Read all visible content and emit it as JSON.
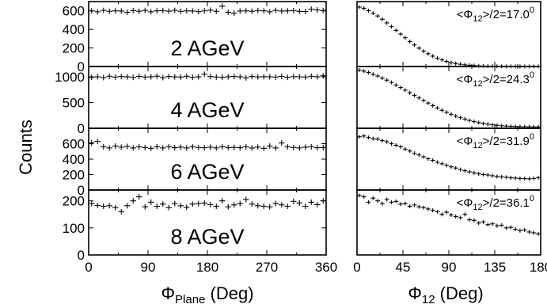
{
  "figure": {
    "ylabel": "Counts",
    "left_xlabel_main": "Φ",
    "left_xlabel_sub": "Plane",
    "left_xlabel_unit": " (Deg)",
    "right_xlabel_main": "Φ",
    "right_xlabel_sub": "12",
    "right_xlabel_unit": " (Deg)",
    "left_xticks": [
      "0",
      "90",
      "180",
      "270",
      "360"
    ],
    "right_xticks": [
      "0",
      "45",
      "90",
      "135",
      "180"
    ]
  },
  "chart_data": [
    {
      "type": "scatter",
      "panel": "left-1",
      "label": "2 AGeV",
      "xlabel": "Φ_Plane (Deg)",
      "ylabel": "Counts",
      "xlim": [
        0,
        360
      ],
      "ylim": [
        0,
        700
      ],
      "yticks": [
        "0",
        "200",
        "400",
        "600"
      ],
      "x": [
        4.5,
        13.5,
        22.5,
        31.5,
        40.5,
        49.5,
        58.5,
        67.5,
        76.5,
        85.5,
        94.5,
        103.5,
        112.5,
        121.5,
        130.5,
        139.5,
        148.5,
        157.5,
        166.5,
        175.5,
        184.5,
        193.5,
        202.5,
        211.5,
        220.5,
        229.5,
        238.5,
        247.5,
        256.5,
        265.5,
        274.5,
        283.5,
        292.5,
        301.5,
        310.5,
        319.5,
        328.5,
        337.5,
        346.5,
        355.5
      ],
      "values": [
        600,
        590,
        605,
        595,
        600,
        598,
        585,
        602,
        596,
        605,
        590,
        600,
        603,
        597,
        605,
        595,
        600,
        598,
        592,
        600,
        607,
        595,
        650,
        585,
        575,
        598,
        600,
        596,
        603,
        600,
        590,
        605,
        598,
        600,
        602,
        595,
        593,
        618,
        610,
        604
      ]
    },
    {
      "type": "scatter",
      "panel": "left-2",
      "label": "4 AGeV",
      "xlim": [
        0,
        360
      ],
      "ylim": [
        0,
        1200
      ],
      "yticks": [
        "0",
        "500",
        "1000"
      ],
      "x": [
        4.5,
        13.5,
        22.5,
        31.5,
        40.5,
        49.5,
        58.5,
        67.5,
        76.5,
        85.5,
        94.5,
        103.5,
        112.5,
        121.5,
        130.5,
        139.5,
        148.5,
        157.5,
        166.5,
        175.5,
        184.5,
        193.5,
        202.5,
        211.5,
        220.5,
        229.5,
        238.5,
        247.5,
        256.5,
        265.5,
        274.5,
        283.5,
        292.5,
        301.5,
        310.5,
        319.5,
        328.5,
        337.5,
        346.5,
        355.5
      ],
      "values": [
        990,
        1000,
        985,
        1010,
        995,
        1005,
        1000,
        990,
        1008,
        995,
        1000,
        1012,
        985,
        1005,
        1000,
        995,
        1010,
        990,
        1000,
        1050,
        1005,
        995,
        990,
        1000,
        1005,
        1000,
        980,
        1005,
        998,
        1002,
        1000,
        995,
        1008,
        990,
        1003,
        1000,
        995,
        1010,
        1000,
        1020
      ]
    },
    {
      "type": "scatter",
      "panel": "left-3",
      "label": "6 AGeV",
      "xlim": [
        0,
        360
      ],
      "ylim": [
        0,
        800
      ],
      "yticks": [
        "0",
        "200",
        "400",
        "600"
      ],
      "x": [
        4.5,
        13.5,
        22.5,
        31.5,
        40.5,
        49.5,
        58.5,
        67.5,
        76.5,
        85.5,
        94.5,
        103.5,
        112.5,
        121.5,
        130.5,
        139.5,
        148.5,
        157.5,
        166.5,
        175.5,
        184.5,
        193.5,
        202.5,
        211.5,
        220.5,
        229.5,
        238.5,
        247.5,
        256.5,
        265.5,
        274.5,
        283.5,
        292.5,
        301.5,
        310.5,
        319.5,
        328.5,
        337.5,
        346.5,
        355.5
      ],
      "values": [
        610,
        630,
        560,
        545,
        570,
        555,
        565,
        545,
        560,
        550,
        540,
        560,
        545,
        560,
        548,
        555,
        545,
        560,
        550,
        548,
        555,
        545,
        560,
        550,
        552,
        548,
        560,
        545,
        556,
        540,
        570,
        545,
        610,
        560,
        550,
        545,
        555,
        560,
        548,
        550
      ]
    },
    {
      "type": "scatter",
      "panel": "left-4",
      "label": "8 AGeV",
      "xlim": [
        0,
        360
      ],
      "ylim": [
        0,
        240
      ],
      "yticks": [
        "0",
        "100",
        "200"
      ],
      "x": [
        4.5,
        13.5,
        22.5,
        31.5,
        40.5,
        49.5,
        58.5,
        67.5,
        76.5,
        85.5,
        94.5,
        103.5,
        112.5,
        121.5,
        130.5,
        139.5,
        148.5,
        157.5,
        166.5,
        175.5,
        184.5,
        193.5,
        202.5,
        211.5,
        220.5,
        229.5,
        238.5,
        247.5,
        256.5,
        265.5,
        274.5,
        283.5,
        292.5,
        301.5,
        310.5,
        319.5,
        328.5,
        337.5,
        346.5,
        355.5
      ],
      "values": [
        190,
        183,
        180,
        182,
        175,
        160,
        182,
        200,
        215,
        178,
        195,
        180,
        188,
        175,
        190,
        182,
        176,
        188,
        190,
        192,
        186,
        180,
        200,
        178,
        185,
        190,
        205,
        188,
        182,
        180,
        178,
        190,
        185,
        180,
        198,
        192,
        180,
        195,
        186,
        200
      ]
    },
    {
      "type": "scatter",
      "panel": "right-1",
      "annotation_prefix": "<Φ",
      "annotation_sub": "12",
      "annotation_suffix": ">/2=17.0",
      "annotation_sup": "0",
      "xlabel": "Φ_12 (Deg)",
      "xlim": [
        0,
        180
      ],
      "ylim": [
        0,
        700
      ],
      "x": [
        2.25,
        6.75,
        11.25,
        15.75,
        20.25,
        24.75,
        29.25,
        33.75,
        38.25,
        42.75,
        47.25,
        51.75,
        56.25,
        60.75,
        65.25,
        69.75,
        74.25,
        78.75,
        83.25,
        87.75,
        92.25,
        96.75,
        101.25,
        105.75,
        110.25,
        114.75,
        119.25,
        123.75,
        128.25,
        132.75,
        137.25,
        141.75,
        146.25,
        150.75,
        155.25,
        159.75,
        164.25,
        168.75,
        173.25,
        177.75
      ],
      "values": [
        640,
        628,
        602,
        575,
        545,
        510,
        470,
        430,
        390,
        350,
        310,
        270,
        232,
        198,
        166,
        138,
        112,
        90,
        71,
        55,
        42,
        32,
        24,
        18,
        13,
        10,
        7,
        5,
        4,
        3,
        2,
        2,
        1,
        1,
        1,
        1,
        1,
        1,
        1,
        1
      ]
    },
    {
      "type": "scatter",
      "panel": "right-2",
      "annotation_prefix": "<Φ",
      "annotation_sub": "12",
      "annotation_suffix": ">/2=24.3",
      "annotation_sup": "0",
      "xlim": [
        0,
        180
      ],
      "ylim": [
        0,
        1200
      ],
      "x": [
        2.25,
        6.75,
        11.25,
        15.75,
        20.25,
        24.75,
        29.25,
        33.75,
        38.25,
        42.75,
        47.25,
        51.75,
        56.25,
        60.75,
        65.25,
        69.75,
        74.25,
        78.75,
        83.25,
        87.75,
        92.25,
        96.75,
        101.25,
        105.75,
        110.25,
        114.75,
        119.25,
        123.75,
        128.25,
        132.75,
        137.25,
        141.75,
        146.25,
        150.75,
        155.25,
        159.75,
        164.25,
        168.75,
        173.25,
        177.75
      ],
      "values": [
        1130,
        1110,
        1085,
        1050,
        1015,
        975,
        935,
        890,
        840,
        790,
        740,
        690,
        640,
        590,
        540,
        490,
        440,
        395,
        350,
        310,
        272,
        238,
        206,
        178,
        152,
        130,
        110,
        93,
        79,
        67,
        57,
        49,
        43,
        38,
        34,
        31,
        29,
        28,
        27,
        26
      ]
    },
    {
      "type": "scatter",
      "panel": "right-3",
      "annotation_prefix": "<Φ",
      "annotation_sub": "12",
      "annotation_suffix": ">/2=31.9",
      "annotation_sup": "0",
      "xlim": [
        0,
        180
      ],
      "ylim": [
        0,
        800
      ],
      "x": [
        2.25,
        6.75,
        11.25,
        15.75,
        20.25,
        24.75,
        29.25,
        33.75,
        38.25,
        42.75,
        47.25,
        51.75,
        56.25,
        60.75,
        65.25,
        69.75,
        74.25,
        78.75,
        83.25,
        87.75,
        92.25,
        96.75,
        101.25,
        105.75,
        110.25,
        114.75,
        119.25,
        123.75,
        128.25,
        132.75,
        137.25,
        141.75,
        146.25,
        150.75,
        155.25,
        159.75,
        164.25,
        168.75,
        173.25,
        177.75
      ],
      "values": [
        690,
        700,
        680,
        665,
        660,
        640,
        625,
        600,
        580,
        560,
        530,
        505,
        475,
        455,
        430,
        405,
        385,
        360,
        340,
        320,
        300,
        285,
        265,
        250,
        235,
        222,
        210,
        200,
        195,
        185,
        175,
        170,
        165,
        158,
        155,
        150,
        148,
        145,
        150,
        160
      ]
    },
    {
      "type": "scatter",
      "panel": "right-4",
      "annotation_prefix": "<Φ",
      "annotation_sub": "12",
      "annotation_suffix": ">/2=36.1",
      "annotation_sup": "0",
      "xlim": [
        0,
        180
      ],
      "ylim": [
        0,
        240
      ],
      "x": [
        2.25,
        6.75,
        11.25,
        15.75,
        20.25,
        24.75,
        29.25,
        33.75,
        38.25,
        42.75,
        47.25,
        51.75,
        56.25,
        60.75,
        65.25,
        69.75,
        74.25,
        78.75,
        83.25,
        87.75,
        92.25,
        96.75,
        101.25,
        105.75,
        110.25,
        114.75,
        119.25,
        123.75,
        128.25,
        132.75,
        137.25,
        141.75,
        146.25,
        150.75,
        155.25,
        159.75,
        164.25,
        168.75,
        173.25,
        177.75
      ],
      "values": [
        220,
        215,
        195,
        210,
        200,
        190,
        205,
        195,
        198,
        188,
        190,
        180,
        185,
        178,
        175,
        170,
        165,
        160,
        150,
        158,
        148,
        142,
        138,
        150,
        130,
        128,
        118,
        122,
        112,
        115,
        108,
        110,
        100,
        102,
        95,
        90,
        92,
        85,
        82,
        78
      ]
    }
  ]
}
